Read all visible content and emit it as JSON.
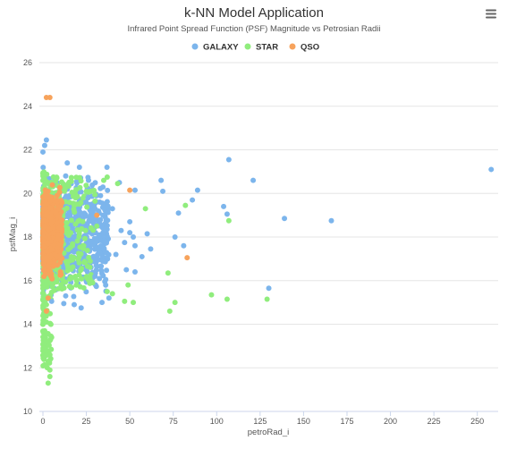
{
  "chart_data": {
    "type": "scatter",
    "title": "k-NN Model Application",
    "subtitle": "Infrared Point Spread Function (PSF) Magnitude vs Petrosian Radii",
    "xlabel": "petroRad_i",
    "ylabel": "psfMag_i",
    "xlim": [
      0,
      262
    ],
    "ylim": [
      10,
      26
    ],
    "x_ticks": [
      "0",
      "25",
      "50",
      "75",
      "100",
      "125",
      "150",
      "175",
      "200",
      "225",
      "250"
    ],
    "y_ticks": [
      "10",
      "12",
      "14",
      "16",
      "18",
      "20",
      "22",
      "24",
      "26"
    ],
    "grid": "horizontal",
    "legend_position": "top-center",
    "series": [
      {
        "name": "GALAXY",
        "color": "#7cb5ec",
        "points": [
          [
            258,
            21.1
          ],
          [
            107,
            21.55
          ],
          [
            121,
            20.6
          ],
          [
            139,
            18.85
          ],
          [
            166,
            18.75
          ],
          [
            130,
            15.65
          ],
          [
            104,
            19.4
          ],
          [
            106,
            19.05
          ],
          [
            89,
            20.15
          ],
          [
            86,
            19.7
          ],
          [
            68,
            20.6
          ],
          [
            69,
            20.1
          ],
          [
            78,
            19.1
          ],
          [
            76,
            18.0
          ],
          [
            81,
            17.6
          ],
          [
            62,
            17.45
          ],
          [
            60,
            18.15
          ],
          [
            52,
            18.0
          ],
          [
            53,
            17.6
          ],
          [
            50,
            18.7
          ],
          [
            47,
            17.75
          ],
          [
            45,
            18.3
          ],
          [
            53,
            20.15
          ],
          [
            44,
            20.5
          ],
          [
            2,
            22.45
          ],
          [
            1,
            22.2
          ],
          [
            0,
            21.9
          ],
          [
            21,
            21.2
          ],
          [
            14,
            21.4
          ],
          [
            50,
            18.2
          ],
          [
            57,
            17.1
          ],
          [
            53,
            16.4
          ],
          [
            48,
            16.5
          ],
          [
            38,
            15.2
          ],
          [
            34,
            15.0
          ],
          [
            22,
            14.75
          ],
          [
            18,
            14.9
          ],
          [
            12,
            14.95
          ],
          [
            5,
            15.05
          ],
          [
            30,
            16.2
          ],
          [
            36,
            17.8
          ],
          [
            42,
            17.2
          ],
          [
            26,
            19.8
          ],
          [
            33,
            18.6
          ],
          [
            40,
            19.3
          ]
        ]
      },
      {
        "name": "STAR",
        "color": "#90ed7d",
        "points": [
          [
            35,
            20.6
          ],
          [
            37,
            20.75
          ],
          [
            43,
            20.45
          ],
          [
            59,
            19.3
          ],
          [
            82,
            19.45
          ],
          [
            107,
            18.75
          ],
          [
            72,
            16.35
          ],
          [
            49,
            15.8
          ],
          [
            47,
            15.05
          ],
          [
            52,
            15.0
          ],
          [
            73,
            14.6
          ],
          [
            76,
            15.0
          ],
          [
            97,
            15.35
          ],
          [
            106,
            15.15
          ],
          [
            129,
            15.15
          ],
          [
            4,
            11.6
          ],
          [
            4,
            11.9
          ],
          [
            3,
            12.3
          ],
          [
            2,
            12.8
          ],
          [
            3,
            13.2
          ],
          [
            1,
            13.7
          ],
          [
            2,
            14.1
          ],
          [
            1,
            14.5
          ],
          [
            2,
            14.9
          ],
          [
            5,
            13.4
          ],
          [
            4,
            12.6
          ],
          [
            3,
            11.3
          ],
          [
            37,
            15.5
          ],
          [
            40,
            15.4
          ],
          [
            31,
            18.5
          ]
        ]
      },
      {
        "name": "QSO",
        "color": "#f7a35c",
        "points": [
          [
            2,
            24.4
          ],
          [
            4,
            24.4
          ],
          [
            50,
            20.15
          ],
          [
            31,
            19.0
          ],
          [
            83,
            17.05
          ],
          [
            2,
            14.6
          ],
          [
            3,
            15.2
          ],
          [
            2,
            19.8
          ],
          [
            6,
            18.2
          ],
          [
            8,
            17.5
          ]
        ]
      }
    ]
  }
}
